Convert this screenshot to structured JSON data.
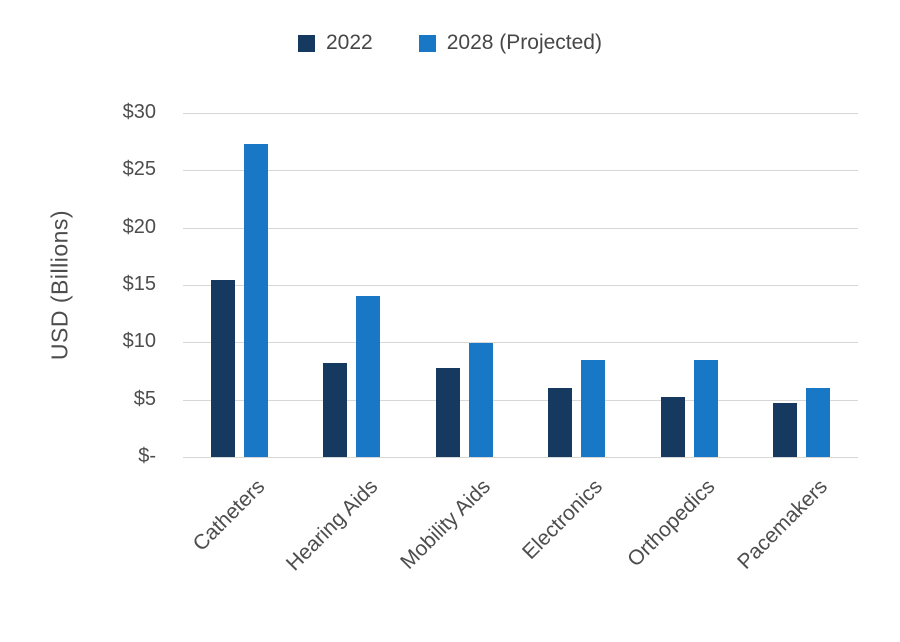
{
  "chart_data": {
    "type": "bar",
    "ylabel": "USD (Billions)",
    "xlabel": "",
    "ylim": [
      0,
      30
    ],
    "grid": "horizontal",
    "legend_position": "top",
    "y_ticks": [
      {
        "value": 30,
        "label": "$30"
      },
      {
        "value": 25,
        "label": "$25"
      },
      {
        "value": 20,
        "label": "$20"
      },
      {
        "value": 15,
        "label": "$15"
      },
      {
        "value": 10,
        "label": "$10"
      },
      {
        "value": 5,
        "label": "$5"
      },
      {
        "value": 0,
        "label": "$-"
      }
    ],
    "categories": [
      "Catheters",
      "Hearing Aids",
      "Mobility Aids",
      "Electronics",
      "Orthopedics",
      "Pacemakers"
    ],
    "series": [
      {
        "key": "2022",
        "name": "2022",
        "color": "#16395F",
        "values": [
          15.4,
          8.2,
          7.8,
          6.0,
          5.2,
          4.7
        ]
      },
      {
        "key": "2028",
        "name": "2028 (Projected)",
        "color": "#1878C6",
        "values": [
          27.3,
          14.0,
          9.9,
          8.5,
          8.5,
          6.0
        ]
      }
    ],
    "colors": {
      "series_2022": "#16395F",
      "series_2028": "#1878C6",
      "grid": "#D7D7D7",
      "text": "#4D4D4D",
      "background": "#FFFFFF"
    }
  }
}
